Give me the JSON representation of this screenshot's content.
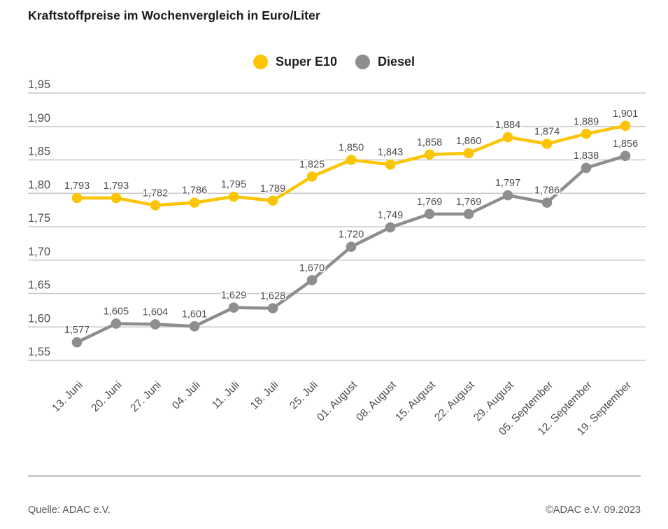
{
  "title": "Kraftstoffpreise im Wochenvergleich in Euro/Liter",
  "footer": {
    "source": "Quelle: ADAC e.V.",
    "copyright": "©ADAC e.V. 09.2023"
  },
  "colors": {
    "super_e10": "#FBC505",
    "diesel": "#8E8E8E",
    "gridline": "#C9C9C9",
    "axis_text": "#4D4D4D",
    "title_text": "#1A1A1A"
  },
  "chart_data": {
    "type": "line",
    "title": "Kraftstoffpreise im Wochenvergleich in Euro/Liter",
    "xlabel": "",
    "ylabel": "Euro/Liter",
    "grid": true,
    "legend_position": "top-center",
    "value_labels": true,
    "decimal_format": "comma",
    "ylim": [
      1.55,
      1.95
    ],
    "ytick_step": 0.05,
    "categories": [
      "13. Juni",
      "20. Juni",
      "27. Juni",
      "04. Juli",
      "11. Juli",
      "18. Juli",
      "25. Juli",
      "01. August",
      "08. August",
      "15. August",
      "22. August",
      "29. August",
      "05. September",
      "12. September",
      "19. September"
    ],
    "series": [
      {
        "name": "Super E10",
        "color": "#FBC505",
        "values": [
          1.793,
          1.793,
          1.782,
          1.786,
          1.795,
          1.789,
          1.825,
          1.85,
          1.843,
          1.858,
          1.86,
          1.884,
          1.874,
          1.889,
          1.901
        ]
      },
      {
        "name": "Diesel",
        "color": "#8E8E8E",
        "values": [
          1.577,
          1.605,
          1.604,
          1.601,
          1.629,
          1.628,
          1.67,
          1.72,
          1.749,
          1.769,
          1.769,
          1.797,
          1.786,
          1.838,
          1.856
        ]
      }
    ]
  }
}
